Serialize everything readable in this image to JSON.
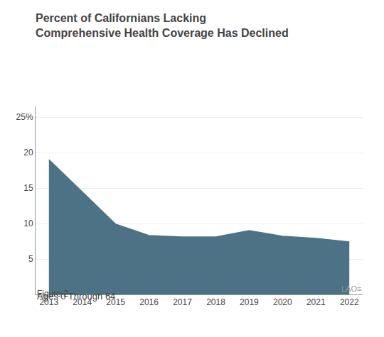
{
  "chart_data": {
    "type": "area",
    "title": "Percent of Californians Lacking\nComprehensive Health Coverage Has Declined",
    "subtitle": "Ages 0 Through 64",
    "annotations": [
      "Figure 2",
      "LAO≡"
    ],
    "x": [
      2013,
      2014,
      2015,
      2016,
      2017,
      2018,
      2019,
      2020,
      2021,
      2022
    ],
    "values": [
      19.0,
      14.5,
      9.9,
      8.3,
      8.1,
      8.1,
      9.0,
      8.2,
      7.9,
      7.4
    ],
    "color": "#4d7285",
    "xlim": [
      2012.6,
      2022.4
    ],
    "xticks": [
      2013,
      2014,
      2015,
      2016,
      2017,
      2018,
      2019,
      2020,
      2021,
      2022
    ],
    "ylim": [
      0,
      26.5
    ],
    "yticks": [
      5,
      10,
      15,
      20,
      {
        "value": 25,
        "label": "25%"
      }
    ],
    "grid": true
  }
}
